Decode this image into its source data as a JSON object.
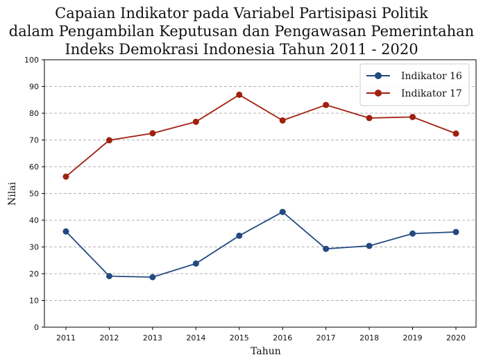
{
  "chart_data": {
    "type": "line",
    "title_lines": [
      "Capaian Indikator pada Variabel Partisipasi Politik",
      "dalam Pengambilan Keputusan dan Pengawasan Pemerintahan",
      "Indeks Demokrasi Indonesia Tahun 2011 - 2020"
    ],
    "xlabel": "Tahun",
    "ylabel": "Nilai",
    "categories": [
      "2011",
      "2012",
      "2013",
      "2014",
      "2015",
      "2016",
      "2017",
      "2018",
      "2019",
      "2020"
    ],
    "ylim": [
      0,
      100
    ],
    "yticks": [
      "0",
      "10",
      "20",
      "30",
      "40",
      "50",
      "60",
      "70",
      "80",
      "90",
      "100"
    ],
    "grid": true,
    "legend_position": "top-right",
    "series": [
      {
        "name": "Indikator 16",
        "color": "#234a80",
        "values": [
          35.8,
          19.1,
          18.7,
          23.8,
          34.2,
          43.1,
          29.3,
          30.4,
          35.0,
          35.6
        ]
      },
      {
        "name": "Indikator 17",
        "color": "#a0200e",
        "values": [
          56.3,
          69.9,
          72.5,
          76.8,
          86.9,
          77.3,
          83.1,
          78.2,
          78.6,
          72.4
        ]
      }
    ]
  }
}
